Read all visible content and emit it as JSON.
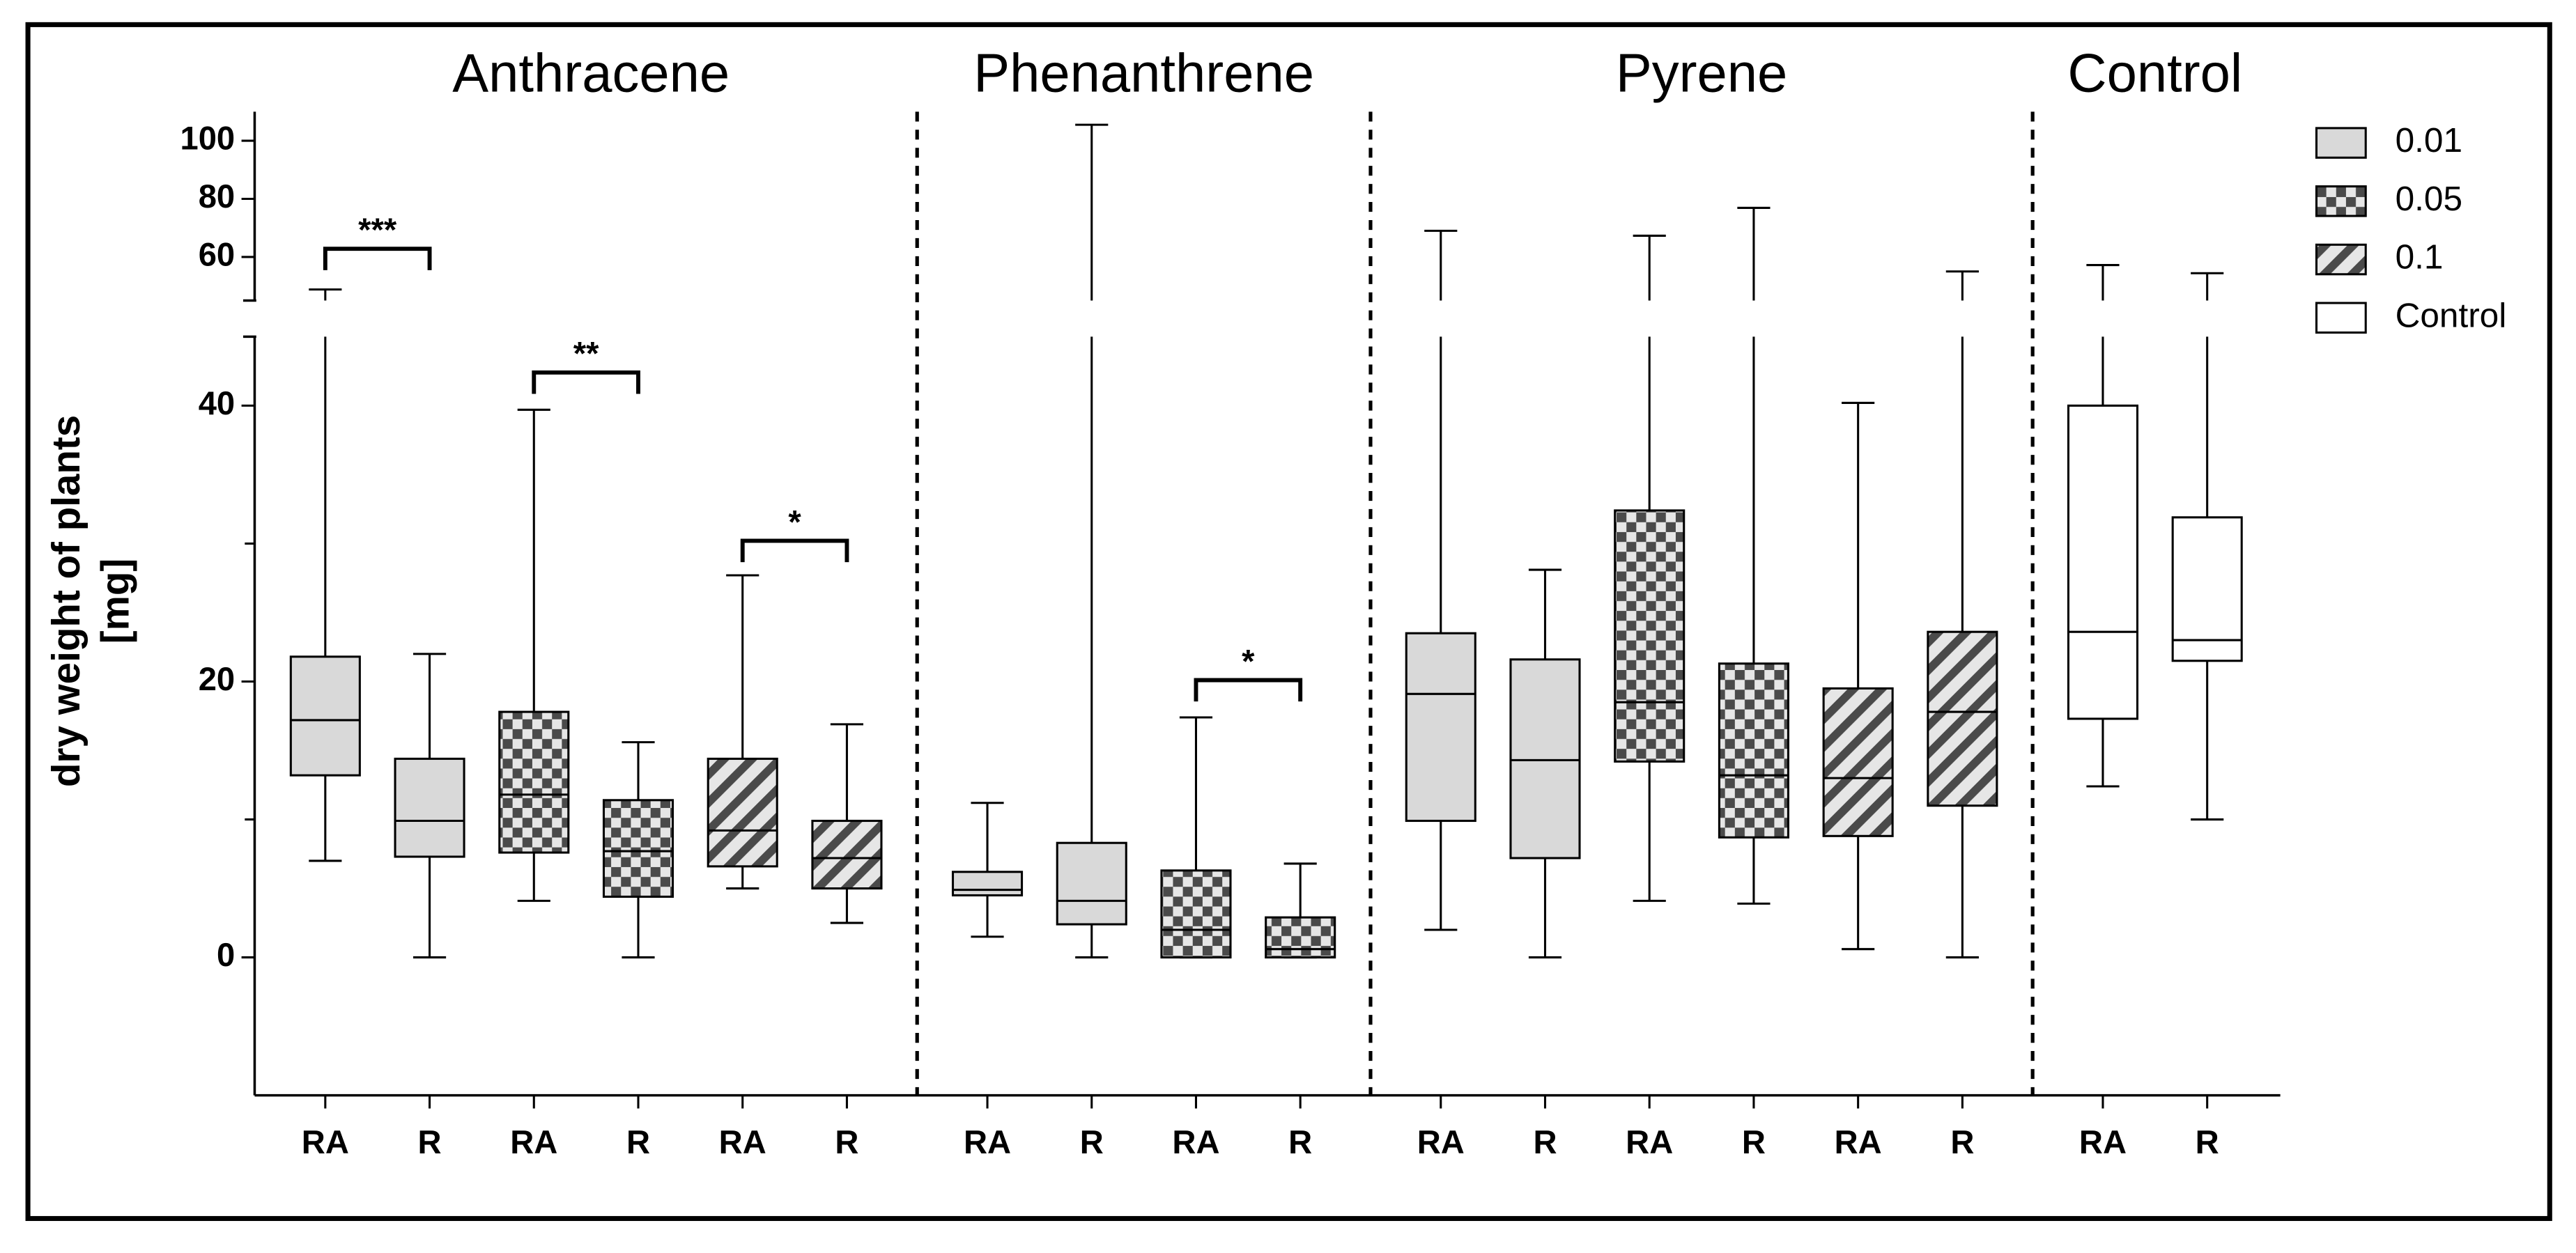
{
  "chart_data": {
    "type": "box",
    "y_label": [
      "dry weight of plants",
      "[mg]"
    ],
    "y_segments": [
      {
        "ylim": [
          -10,
          45
        ],
        "yticks": [
          0,
          20,
          40
        ],
        "minor_yticks": [
          10,
          30
        ]
      },
      {
        "ylim": [
          45,
          110
        ],
        "yticks": [
          60,
          80,
          100
        ]
      }
    ],
    "series": [
      {
        "name": "0.01",
        "color": "#d9d9d9",
        "pattern": "solid"
      },
      {
        "name": "0.05",
        "color": "#4a4a4a",
        "pattern": "checker"
      },
      {
        "name": "0.1",
        "color": "#4a4a4a",
        "pattern": "hatch"
      },
      {
        "name": "Control",
        "color": "#ffffff",
        "pattern": "solid"
      }
    ],
    "groups": [
      {
        "name": "Anthracene",
        "boxes": [
          {
            "category": "RA",
            "series": "0.01",
            "min": 7.0,
            "q1": 13.2,
            "median": 17.2,
            "q3": 21.8,
            "max": 48.8,
            "bracket": {
              "y": 62.8,
              "label": "***"
            }
          },
          {
            "category": "R",
            "series": "0.01",
            "min": 0,
            "q1": 7.3,
            "median": 9.9,
            "q3": 14.4,
            "max": 22.0
          },
          {
            "category": "RA",
            "series": "0.05",
            "min": 4.1,
            "q1": 7.6,
            "median": 11.8,
            "q3": 17.8,
            "max": 39.7,
            "bracket": {
              "y": 42.4,
              "label": "**"
            }
          },
          {
            "category": "R",
            "series": "0.05",
            "min": 0,
            "q1": 4.4,
            "median": 7.7,
            "q3": 11.4,
            "max": 15.6
          },
          {
            "category": "RA",
            "series": "0.1",
            "min": 5.0,
            "q1": 6.6,
            "median": 9.2,
            "q3": 14.4,
            "max": 27.7,
            "bracket": {
              "y": 30.2,
              "label": "*"
            }
          },
          {
            "category": "R",
            "series": "0.1",
            "min": 2.5,
            "q1": 5.0,
            "median": 7.2,
            "q3": 9.9,
            "max": 16.9
          }
        ]
      },
      {
        "name": "Phenanthrene",
        "boxes": [
          {
            "category": "RA",
            "series": "0.01",
            "min": 1.5,
            "q1": 4.5,
            "median": 4.9,
            "q3": 6.2,
            "max": 11.2
          },
          {
            "category": "R",
            "series": "0.01",
            "min": 0,
            "q1": 2.4,
            "median": 4.1,
            "q3": 8.3,
            "max": 105.5
          },
          {
            "category": "RA",
            "series": "0.05",
            "min": 0,
            "q1": 0,
            "median": 2.0,
            "q3": 6.3,
            "max": 17.4,
            "bracket": {
              "y": 20.1,
              "label": "*"
            }
          },
          {
            "category": "R",
            "series": "0.05",
            "min": 0,
            "q1": 0,
            "median": 0.6,
            "q3": 2.9,
            "max": 6.8
          }
        ]
      },
      {
        "name": "Pyrene",
        "boxes": [
          {
            "category": "RA",
            "series": "0.01",
            "min": 2.0,
            "q1": 9.9,
            "median": 19.1,
            "q3": 23.5,
            "max": 69.0
          },
          {
            "category": "R",
            "series": "0.01",
            "min": 0,
            "q1": 7.2,
            "median": 14.3,
            "q3": 21.6,
            "max": 28.1
          },
          {
            "category": "RA",
            "series": "0.05",
            "min": 4.1,
            "q1": 14.2,
            "median": 18.5,
            "q3": 32.4,
            "max": 67.3
          },
          {
            "category": "R",
            "series": "0.05",
            "min": 3.9,
            "q1": 8.7,
            "median": 13.2,
            "q3": 21.3,
            "max": 76.9
          },
          {
            "category": "RA",
            "series": "0.1",
            "min": 0.6,
            "q1": 8.8,
            "median": 13.0,
            "q3": 19.5,
            "max": 40.2
          },
          {
            "category": "R",
            "series": "0.1",
            "min": 0,
            "q1": 11.0,
            "median": 17.8,
            "q3": 23.6,
            "max": 55.0
          }
        ]
      },
      {
        "name": "Control",
        "boxes": [
          {
            "category": "RA",
            "series": "Control",
            "min": 12.4,
            "q1": 17.3,
            "median": 23.6,
            "q3": 40.0,
            "max": 57.2
          },
          {
            "category": "R",
            "series": "Control",
            "min": 10.0,
            "q1": 21.5,
            "median": 23.0,
            "q3": 31.9,
            "max": 54.4
          }
        ]
      }
    ]
  }
}
